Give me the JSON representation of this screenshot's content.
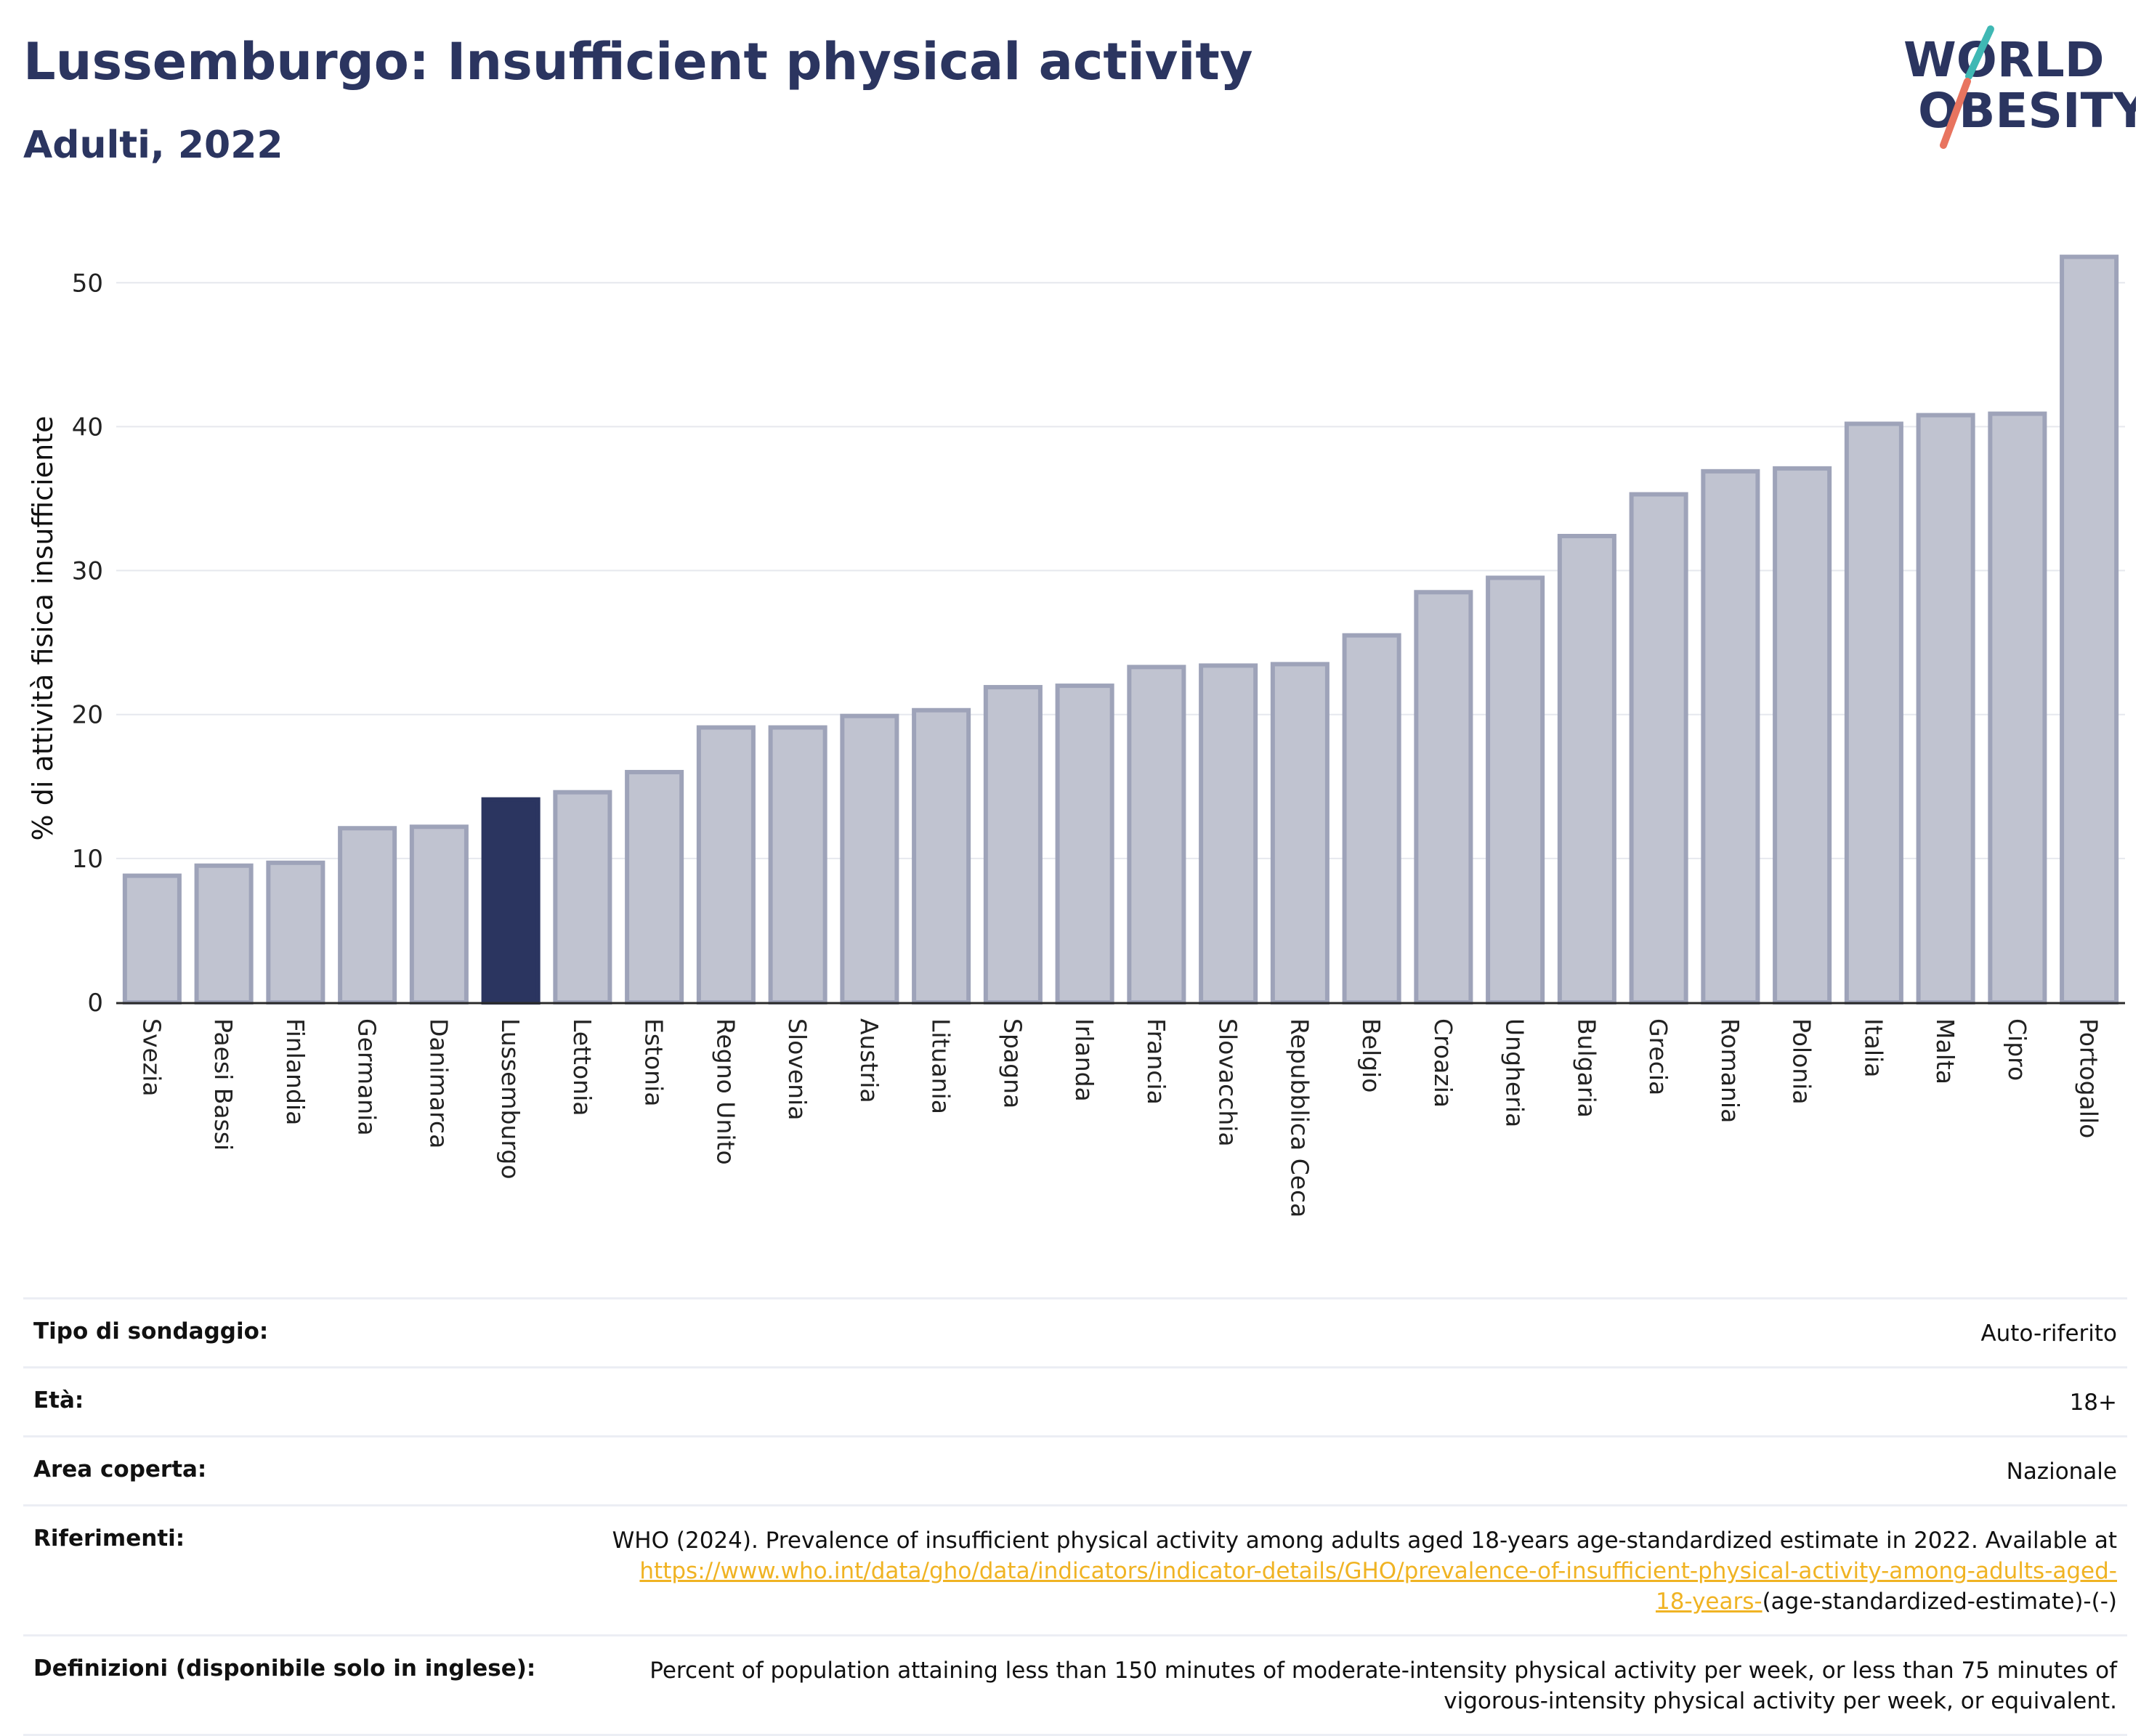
{
  "header": {
    "title": "Lussemburgo: Insufficient physical activity",
    "subtitle": "Adulti, 2022"
  },
  "logo": {
    "line1": "WORLD",
    "line2": "OBESITY",
    "colors": {
      "text": "#2b3560",
      "slash_top": "#3fb8b4",
      "slash_bottom": "#e8745f"
    }
  },
  "colors": {
    "bar_default": "#c0c3d0",
    "bar_default_stroke": "#9ea3b9",
    "bar_highlight": "#2b3560",
    "gridline": "#e6e8ee",
    "axis": "#2b2b2b"
  },
  "chart_data": {
    "type": "bar",
    "title": "Lussemburgo: Insufficient physical activity",
    "subtitle": "Adulti, 2022",
    "ylabel": "% di attività fisica insufficiente",
    "ylim": [
      0,
      54
    ],
    "yticks": [
      0,
      10,
      20,
      30,
      40,
      50
    ],
    "grid": true,
    "highlight": "Lussemburgo",
    "categories": [
      "Svezia",
      "Paesi Bassi",
      "Finlandia",
      "Germania",
      "Danimarca",
      "Lussemburgo",
      "Lettonia",
      "Estonia",
      "Regno Unito",
      "Slovenia",
      "Austria",
      "Lituania",
      "Spagna",
      "Irlanda",
      "Francia",
      "Slovacchia",
      "Repubblica Ceca",
      "Belgio",
      "Croazia",
      "Ungheria",
      "Bulgaria",
      "Grecia",
      "Romania",
      "Polonia",
      "Italia",
      "Malta",
      "Cipro",
      "Portogallo"
    ],
    "values": [
      8.8,
      9.5,
      9.7,
      12.1,
      12.2,
      14.1,
      14.6,
      16.0,
      19.1,
      19.1,
      19.9,
      20.3,
      21.9,
      22.0,
      23.3,
      23.4,
      23.5,
      25.5,
      28.5,
      29.5,
      32.4,
      35.3,
      36.9,
      37.1,
      40.2,
      40.8,
      40.9,
      51.8
    ]
  },
  "info": {
    "survey_type": {
      "label": "Tipo di sondaggio:",
      "value": "Auto-riferito"
    },
    "age": {
      "label": "Età:",
      "value": "18+"
    },
    "area": {
      "label": "Area coperta:",
      "value": "Nazionale"
    },
    "references": {
      "label": "Riferimenti:",
      "text_before": "WHO (2024). Prevalence of insufficient physical activity among adults aged 18-years age-standardized estimate in 2022. Available at",
      "link_line1": "https://www.who.int/data/gho/data/indicators/indicator-details/GHO/prevalence-of-insufficient-physical-activity-among-adults-aged-",
      "link_line2": "18-years-",
      "text_after": "(age-standardized-estimate)-(-)"
    },
    "definitions": {
      "label": "Definizioni (disponibile solo in inglese):",
      "line1": "Percent of population attaining less than 150 minutes of moderate-intensity physical activity per week, or less than 75 minutes of",
      "line2": "vigorous-intensity physical activity per week, or equivalent."
    }
  }
}
